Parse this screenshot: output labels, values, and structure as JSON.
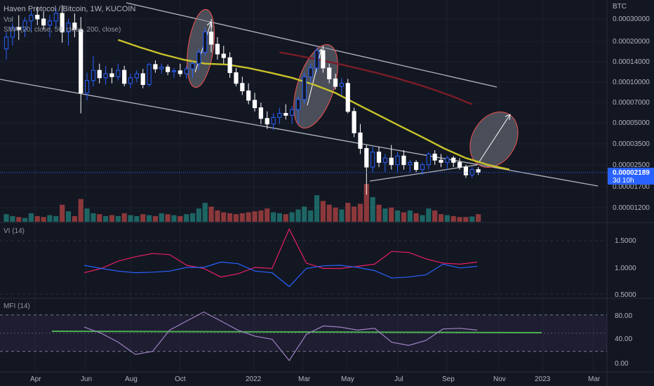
{
  "header": {
    "title": "Haven Protocol / Bitcoin, 1W, KUCOIN",
    "vol_label": "Vol",
    "sma_label": "SMA (20, close, 50, close, 200, close)",
    "currency": "BTC"
  },
  "price": {
    "last": "0.00002189",
    "countdown": "3d 10h"
  },
  "colors": {
    "background": "#131722",
    "up": "#26a69a",
    "down": "#ef5350",
    "sma50": "#c8c22a",
    "sma200": "#7a1d26",
    "vi_plus": "#e91e63",
    "vi_minus": "#2962ff",
    "mfi": "#9e82c0",
    "green_line": "#4caf50",
    "last_price": "#2962ff"
  },
  "panels": {
    "vi": {
      "label": "VI (14)",
      "ticks": [
        "1.5000",
        "1.0000",
        "0.5000"
      ]
    },
    "mfi": {
      "label": "MFI (14)",
      "ticks": [
        "80.00",
        "40.00",
        "0.00"
      ]
    }
  },
  "chart_data": {
    "type": "candlestick",
    "title": "Haven Protocol / Bitcoin, 1W, KUCOIN",
    "y_scale": "log",
    "ylim": [
      1.1e-05,
      0.00032
    ],
    "y_ticks": [
      "0.00030000",
      "0.00020000",
      "0.00014000",
      "0.00010000",
      "0.00007000",
      "0.00005000",
      "0.00003500",
      "0.00002500",
      "0.00001700",
      "0.00001200"
    ],
    "x_ticks": [
      "Apr",
      "Jun",
      "Aug",
      "Oct",
      "2022",
      "Mar",
      "May",
      "Jul",
      "Sep",
      "Nov",
      "2023",
      "Mar"
    ],
    "last_price": 2.189e-05,
    "candles": [
      {
        "o": 0.00018,
        "h": 0.00024,
        "l": 0.00015,
        "c": 0.00022
      },
      {
        "o": 0.00022,
        "h": 0.00028,
        "l": 0.00019,
        "c": 0.00026
      },
      {
        "o": 0.00026,
        "h": 0.00032,
        "l": 0.00021,
        "c": 0.00025
      },
      {
        "o": 0.00025,
        "h": 0.00031,
        "l": 0.00022,
        "c": 0.00029
      },
      {
        "o": 0.00029,
        "h": 0.00035,
        "l": 0.00024,
        "c": 0.00032
      },
      {
        "o": 0.00032,
        "h": 0.00037,
        "l": 0.00027,
        "c": 0.0003
      },
      {
        "o": 0.0003,
        "h": 0.00034,
        "l": 0.00025,
        "c": 0.00027
      },
      {
        "o": 0.00027,
        "h": 0.00032,
        "l": 0.00022,
        "c": 0.00029
      },
      {
        "o": 0.00029,
        "h": 0.00036,
        "l": 0.00026,
        "c": 0.00033
      },
      {
        "o": 0.00033,
        "h": 0.00038,
        "l": 0.0002,
        "c": 0.00024
      },
      {
        "o": 0.00024,
        "h": 0.0003,
        "l": 0.00019,
        "c": 0.00028
      },
      {
        "o": 0.00028,
        "h": 0.00033,
        "l": 0.00022,
        "c": 0.00025
      },
      {
        "o": 0.00025,
        "h": 0.00031,
        "l": 6e-05,
        "c": 8.5e-05
      },
      {
        "o": 8.5e-05,
        "h": 0.00012,
        "l": 7.5e-05,
        "c": 0.000105
      },
      {
        "o": 0.000105,
        "h": 0.00016,
        "l": 9.5e-05,
        "c": 0.000125
      },
      {
        "o": 0.000125,
        "h": 0.00014,
        "l": 0.0001,
        "c": 0.00011
      },
      {
        "o": 0.00011,
        "h": 0.000135,
        "l": 9.8e-05,
        "c": 0.000118
      },
      {
        "o": 0.000118,
        "h": 0.00013,
        "l": 0.0001,
        "c": 0.000112
      },
      {
        "o": 0.000112,
        "h": 0.00014,
        "l": 0.000105,
        "c": 0.000125
      },
      {
        "o": 0.000125,
        "h": 0.000135,
        "l": 9.5e-05,
        "c": 0.0001
      },
      {
        "o": 0.0001,
        "h": 0.000118,
        "l": 9.2e-05,
        "c": 0.00011
      },
      {
        "o": 0.00011,
        "h": 0.000125,
        "l": 0.000102,
        "c": 0.000118
      },
      {
        "o": 0.000118,
        "h": 0.000128,
        "l": 9.2e-05,
        "c": 9.8e-05
      },
      {
        "o": 9.8e-05,
        "h": 0.000142,
        "l": 9.5e-05,
        "c": 0.000138
      },
      {
        "o": 0.000138,
        "h": 0.000148,
        "l": 0.00012,
        "c": 0.000128
      },
      {
        "o": 0.000128,
        "h": 0.00014,
        "l": 0.000118,
        "c": 0.000132
      },
      {
        "o": 0.000132,
        "h": 0.000138,
        "l": 0.000115,
        "c": 0.000122
      },
      {
        "o": 0.000122,
        "h": 0.00013,
        "l": 0.00011,
        "c": 0.000124
      },
      {
        "o": 0.000124,
        "h": 0.00014,
        "l": 0.000112,
        "c": 0.000118
      },
      {
        "o": 0.000118,
        "h": 0.000135,
        "l": 0.000108,
        "c": 0.000128
      },
      {
        "o": 0.000128,
        "h": 0.000145,
        "l": 0.00011,
        "c": 0.00014
      },
      {
        "o": 0.00014,
        "h": 0.00018,
        "l": 0.000125,
        "c": 0.00017
      },
      {
        "o": 0.00017,
        "h": 0.00026,
        "l": 0.00016,
        "c": 0.00024
      },
      {
        "o": 0.00024,
        "h": 0.0003,
        "l": 0.00017,
        "c": 0.000195
      },
      {
        "o": 0.000195,
        "h": 0.00022,
        "l": 0.00015,
        "c": 0.000165
      },
      {
        "o": 0.000165,
        "h": 0.00019,
        "l": 0.00014,
        "c": 0.000155
      },
      {
        "o": 0.000155,
        "h": 0.00017,
        "l": 0.00011,
        "c": 0.00012
      },
      {
        "o": 0.00012,
        "h": 0.00013,
        "l": 9.5e-05,
        "c": 0.0001
      },
      {
        "o": 0.0001,
        "h": 0.000112,
        "l": 8.2e-05,
        "c": 8.8e-05
      },
      {
        "o": 8.8e-05,
        "h": 0.0001,
        "l": 7e-05,
        "c": 7.5e-05
      },
      {
        "o": 7.5e-05,
        "h": 8.5e-05,
        "l": 6.2e-05,
        "c": 6.6e-05
      },
      {
        "o": 6.6e-05,
        "h": 7.2e-05,
        "l": 5e-05,
        "c": 5.5e-05
      },
      {
        "o": 5.5e-05,
        "h": 6.2e-05,
        "l": 4.6e-05,
        "c": 5e-05
      },
      {
        "o": 5e-05,
        "h": 6e-05,
        "l": 4.5e-05,
        "c": 5.6e-05
      },
      {
        "o": 5.6e-05,
        "h": 6.6e-05,
        "l": 5e-05,
        "c": 6e-05
      },
      {
        "o": 6e-05,
        "h": 7e-05,
        "l": 5.4e-05,
        "c": 5.8e-05
      },
      {
        "o": 5.8e-05,
        "h": 6.8e-05,
        "l": 5e-05,
        "c": 6.4e-05
      },
      {
        "o": 6.4e-05,
        "h": 8e-05,
        "l": 5e-05,
        "c": 7.6e-05
      },
      {
        "o": 7.6e-05,
        "h": 0.00012,
        "l": 7e-05,
        "c": 0.000112
      },
      {
        "o": 0.000112,
        "h": 0.00014,
        "l": 0.0001,
        "c": 0.00013
      },
      {
        "o": 0.00013,
        "h": 0.000185,
        "l": 0.00012,
        "c": 0.000175
      },
      {
        "o": 0.000175,
        "h": 0.00019,
        "l": 0.00012,
        "c": 0.00013
      },
      {
        "o": 0.00013,
        "h": 0.00014,
        "l": 0.0001,
        "c": 0.000108
      },
      {
        "o": 0.000108,
        "h": 0.000118,
        "l": 9e-05,
        "c": 9.5e-05
      },
      {
        "o": 9.5e-05,
        "h": 0.00011,
        "l": 8.2e-05,
        "c": 0.0001
      },
      {
        "o": 0.0001,
        "h": 0.000108,
        "l": 6e-05,
        "c": 6.2e-05
      },
      {
        "o": 6.2e-05,
        "h": 6.6e-05,
        "l": 4e-05,
        "c": 4.3e-05
      },
      {
        "o": 4.3e-05,
        "h": 5e-05,
        "l": 3e-05,
        "c": 3.3e-05
      },
      {
        "o": 3.3e-05,
        "h": 3.5e-05,
        "l": 1.5e-05,
        "c": 2.4e-05
      },
      {
        "o": 2.4e-05,
        "h": 3.4e-05,
        "l": 2.2e-05,
        "c": 3.1e-05
      },
      {
        "o": 3.1e-05,
        "h": 3.4e-05,
        "l": 2.4e-05,
        "c": 2.6e-05
      },
      {
        "o": 2.6e-05,
        "h": 3e-05,
        "l": 2.2e-05,
        "c": 2.8e-05
      },
      {
        "o": 2.8e-05,
        "h": 3.5e-05,
        "l": 2.3e-05,
        "c": 2.5e-05
      },
      {
        "o": 2.5e-05,
        "h": 3.1e-05,
        "l": 2.2e-05,
        "c": 2.9e-05
      },
      {
        "o": 2.9e-05,
        "h": 3.2e-05,
        "l": 2.3e-05,
        "c": 2.5e-05
      },
      {
        "o": 2.5e-05,
        "h": 2.7e-05,
        "l": 2.2e-05,
        "c": 2.6e-05
      },
      {
        "o": 2.6e-05,
        "h": 2.7e-05,
        "l": 2.2e-05,
        "c": 2.3e-05
      },
      {
        "o": 2.3e-05,
        "h": 2.6e-05,
        "l": 2.1e-05,
        "c": 2.5e-05
      },
      {
        "o": 2.5e-05,
        "h": 3.1e-05,
        "l": 2.3e-05,
        "c": 3e-05
      },
      {
        "o": 3e-05,
        "h": 3.2e-05,
        "l": 2.5e-05,
        "c": 2.7e-05
      },
      {
        "o": 2.7e-05,
        "h": 3e-05,
        "l": 2.4e-05,
        "c": 2.6e-05
      },
      {
        "o": 2.6e-05,
        "h": 2.9e-05,
        "l": 2.3e-05,
        "c": 2.8e-05
      },
      {
        "o": 2.8e-05,
        "h": 2.9e-05,
        "l": 2.4e-05,
        "c": 2.6e-05
      },
      {
        "o": 2.6e-05,
        "h": 2.8e-05,
        "l": 2.3e-05,
        "c": 2.4e-05
      },
      {
        "o": 2.4e-05,
        "h": 2.5e-05,
        "l": 2e-05,
        "c": 2.1e-05
      },
      {
        "o": 2.1e-05,
        "h": 2.4e-05,
        "l": 2e-05,
        "c": 2.3e-05
      },
      {
        "o": 2.3e-05,
        "h": 2.4e-05,
        "l": 2.1e-05,
        "c": 2.2e-05
      }
    ],
    "volume": [
      40,
      30,
      25,
      20,
      45,
      30,
      25,
      35,
      30,
      90,
      55,
      30,
      120,
      70,
      45,
      40,
      30,
      35,
      30,
      45,
      35,
      30,
      40,
      35,
      30,
      45,
      40,
      35,
      30,
      40,
      45,
      70,
      100,
      80,
      60,
      50,
      45,
      40,
      45,
      50,
      55,
      60,
      70,
      50,
      45,
      40,
      50,
      65,
      80,
      60,
      140,
      110,
      90,
      75,
      65,
      100,
      80,
      95,
      200,
      130,
      90,
      70,
      75,
      60,
      50,
      60,
      45,
      35,
      70,
      60,
      40,
      35,
      30,
      25,
      25,
      28,
      40
    ],
    "sma50": [
      0.00021,
      0.000185,
      0.000165,
      0.00015,
      0.00014,
      0.000138,
      0.00013,
      0.00012,
      0.00011,
      9.8e-05,
      8.5e-05,
      7e-05,
      5.8e-05,
      4.8e-05,
      4e-05,
      3.3e-05,
      2.8e-05,
      2.5e-05,
      2.3e-05
    ],
    "sma200": [
      0.00017,
      0.00016,
      0.00015,
      0.00014,
      0.00013,
      0.00012,
      0.00011,
      0.0001,
      9e-05,
      8e-05,
      7e-05
    ],
    "vi_plus": [
      0.9,
      0.98,
      1.12,
      1.2,
      1.26,
      1.24,
      1.04,
      0.98,
      0.82,
      0.88,
      1.0,
      0.98,
      1.72,
      1.08,
      0.98,
      0.98,
      1.02,
      1.06,
      1.3,
      1.28,
      1.16,
      1.08,
      1.06,
      1.1
    ],
    "vi_minus": [
      1.04,
      0.98,
      0.93,
      0.9,
      0.91,
      0.93,
      1.0,
      1.0,
      1.1,
      1.07,
      0.93,
      0.9,
      0.64,
      0.98,
      1.03,
      1.04,
      1.0,
      0.94,
      0.8,
      0.82,
      0.86,
      1.06,
      0.99,
      1.02
    ],
    "mfi": [
      60,
      50,
      35,
      15,
      20,
      55,
      70,
      85,
      70,
      55,
      45,
      40,
      5,
      48,
      62,
      60,
      55,
      58,
      35,
      30,
      38,
      57,
      58,
      55
    ],
    "mfi_bands": [
      80,
      50,
      20
    ]
  }
}
